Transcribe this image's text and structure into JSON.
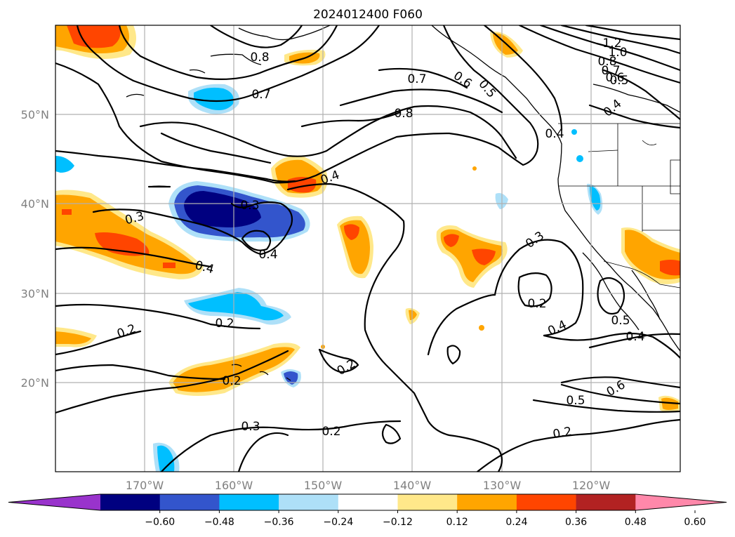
{
  "title": "2024012400 F060",
  "lon_labels": [
    "170°W",
    "160°W",
    "150°W",
    "140°W",
    "130°W",
    "120°W"
  ],
  "lat_labels": [
    "50°N",
    "40°N",
    "30°N",
    "20°N"
  ],
  "colorbar": {
    "ticks": [
      "−0.60",
      "−0.48",
      "−0.36",
      "−0.24",
      "−0.12",
      "0.12",
      "0.24",
      "0.36",
      "0.48",
      "0.60"
    ],
    "colors": [
      "#9933cc",
      "#000080",
      "#3355cc",
      "#00bfff",
      "#aee0f8",
      "#ffffff",
      "#ffe88a",
      "#ffa500",
      "#ff4500",
      "#b22222",
      "#ff88aa"
    ]
  },
  "contour_labels": [
    "0.8",
    "0.7",
    "0.7",
    "0.6",
    "0.5",
    "0.8",
    "1.2",
    "1.0",
    "0.8",
    "0.7",
    "0.6",
    "0.5",
    "0.4",
    "0.4",
    "0.4",
    "0.3",
    "0.4",
    "0.3",
    "0.4",
    "0.3",
    "0.2",
    "0.4",
    "0.2",
    "0.2",
    "0.2",
    "0.2",
    "0.5",
    "0.4",
    "0.6",
    "0.5",
    "0.3",
    "0.2",
    "0.2"
  ]
}
